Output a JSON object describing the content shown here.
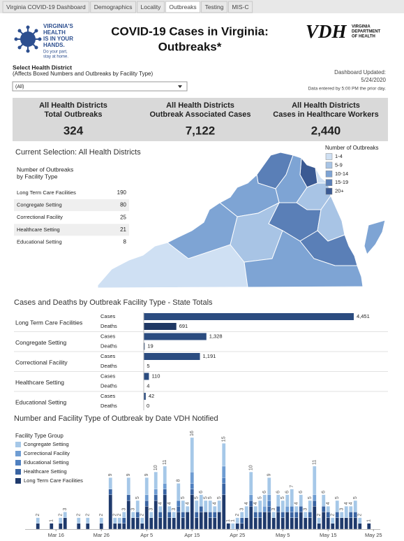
{
  "tabs": [
    "Virginia COVID-19 Dashboard",
    "Demographics",
    "Locality",
    "Outbreaks",
    "Testing",
    "MIS-C"
  ],
  "header": {
    "logo_lines": [
      "VIRGINIA'S",
      "HEALTH",
      "IS IN YOUR",
      "HANDS."
    ],
    "logo_tagline": [
      "Do your part,",
      "stay at home."
    ],
    "title_lines": [
      "COVID-19 Cases in Virginia:",
      "Outbreaks*"
    ],
    "vdh": "VDH",
    "vdh_lines": [
      "VIRGINIA",
      "DEPARTMENT",
      "OF HEALTH"
    ]
  },
  "selector": {
    "label": "Select Health District",
    "note": "(Affects Boxed Numbers and Outbreaks by Facility Type)",
    "value": "(All)"
  },
  "updated": {
    "label": "Dashboard Updated:",
    "date": "5/24/2020",
    "note": "Data entered by 5:00 PM the prior day."
  },
  "kpis": [
    {
      "label_lines": [
        "All Health Districts",
        "Total Outbreaks"
      ],
      "value": 324
    },
    {
      "label_lines": [
        "All Health Districts",
        "Outbreak Associated Cases"
      ],
      "value": 7122,
      "value_label": "7,122"
    },
    {
      "label_lines": [
        "All Health Districts",
        "Cases in Healthcare Workers"
      ],
      "value": 2440,
      "value_label": "2,440"
    }
  ],
  "selection": "Current Selection: All Health Districts",
  "outbreak_table": {
    "title_lines": [
      "Number of Outbreaks",
      "by Facility Type"
    ],
    "rows": [
      [
        "Long Term Care Facilities",
        190
      ],
      [
        "Congregate Setting",
        80
      ],
      [
        "Correctional Facility",
        25
      ],
      [
        "Healthcare Setting",
        21
      ],
      [
        "Educational Setting",
        8
      ]
    ]
  },
  "map": {
    "legend_title": "Number of Outbreaks",
    "bins": [
      {
        "label": "1-4",
        "color": "#cfe0f3"
      },
      {
        "label": "5-9",
        "color": "#a8c4e5"
      },
      {
        "label": "10-14",
        "color": "#7ea4d4"
      },
      {
        "label": "15-19",
        "color": "#5a7fb7"
      },
      {
        "label": "20+",
        "color": "#3b5a93"
      }
    ]
  },
  "chart_data": [
    {
      "type": "hbar",
      "title": "Cases and Deaths by Outbreak Facility Type - State Totals",
      "categories": [
        "Long Term Care Facilities",
        "Congregate Setting",
        "Correctional Facility",
        "Healthcare Setting",
        "Educational Setting"
      ],
      "series": [
        {
          "name": "Cases",
          "color": "#2b4c80",
          "values": [
            4451,
            1328,
            1191,
            110,
            42
          ],
          "value_labels": [
            "4,451",
            "1,328",
            "1,191",
            "110",
            "42"
          ]
        },
        {
          "name": "Deaths",
          "color": "#1f3864",
          "values": [
            691,
            19,
            5,
            4,
            0
          ]
        }
      ]
    },
    {
      "type": "stacked_bar",
      "title": "Number and Facility Type of Outbreak by Date VDH Notified",
      "legend_title": "Facility Type Group",
      "x": [
        "Mar 10",
        "Mar 11",
        "Mar 12",
        "Mar 13",
        "Mar 14",
        "Mar 15",
        "Mar 16",
        "Mar 17",
        "Mar 18",
        "Mar 19",
        "Mar 20",
        "Mar 21",
        "Mar 22",
        "Mar 23",
        "Mar 24",
        "Mar 25",
        "Mar 26",
        "Mar 27",
        "Mar 28",
        "Mar 29",
        "Mar 30",
        "Mar 31",
        "Apr 1",
        "Apr 2",
        "Apr 3",
        "Apr 4",
        "Apr 5",
        "Apr 6",
        "Apr 7",
        "Apr 8",
        "Apr 9",
        "Apr 10",
        "Apr 11",
        "Apr 12",
        "Apr 13",
        "Apr 14",
        "Apr 15",
        "Apr 16",
        "Apr 17",
        "Apr 18",
        "Apr 19",
        "Apr 20",
        "Apr 21",
        "Apr 22",
        "Apr 23",
        "Apr 24",
        "Apr 25",
        "Apr 26",
        "Apr 27",
        "Apr 28",
        "Apr 29",
        "Apr 30",
        "May 1",
        "May 2",
        "May 3",
        "May 4",
        "May 5",
        "May 6",
        "May 7",
        "May 8",
        "May 9",
        "May 10",
        "May 11",
        "May 12",
        "May 13",
        "May 14",
        "May 15",
        "May 16",
        "May 17",
        "May 18",
        "May 19",
        "May 20",
        "May 21",
        "May 22",
        "May 23",
        "May 24"
      ],
      "xticks": [
        "Mar 16",
        "Mar 26",
        "Apr 5",
        "Apr 15",
        "Apr 25",
        "May 5",
        "May 15",
        "May 25"
      ],
      "series": [
        {
          "name": "Congregate Setting",
          "color": "#a6c8e8",
          "values": [
            0,
            0,
            1,
            0,
            0,
            0,
            0,
            1,
            1,
            0,
            0,
            1,
            0,
            1,
            0,
            0,
            1,
            0,
            2,
            1,
            1,
            1,
            3,
            1,
            2,
            1,
            3,
            1,
            3,
            1,
            3,
            1,
            1,
            3,
            2,
            1,
            6,
            2,
            2,
            2,
            2,
            1,
            2,
            4,
            0,
            1,
            1,
            1,
            2,
            4,
            1,
            2,
            2,
            3,
            1,
            2,
            2,
            2,
            3,
            1,
            2,
            1,
            2,
            5,
            1,
            2,
            1,
            1,
            2,
            1,
            2,
            1,
            2,
            1,
            0,
            0
          ]
        },
        {
          "name": "Correctional Facility",
          "color": "#6f9dd3",
          "values": [
            0,
            0,
            0,
            0,
            0,
            0,
            0,
            0,
            0,
            0,
            0,
            0,
            0,
            0,
            0,
            0,
            0,
            0,
            0,
            0,
            0,
            0,
            0,
            0,
            0,
            0,
            1,
            0,
            1,
            0,
            1,
            0,
            0,
            0,
            0,
            0,
            2,
            0,
            0,
            0,
            0,
            0,
            0,
            2,
            0,
            0,
            0,
            0,
            0,
            1,
            0,
            0,
            1,
            1,
            0,
            0,
            0,
            1,
            0,
            0,
            0,
            0,
            0,
            1,
            0,
            0,
            0,
            0,
            0,
            0,
            0,
            0,
            0,
            0,
            0,
            0
          ]
        },
        {
          "name": "Educational Setting",
          "color": "#4f80c0",
          "values": [
            0,
            0,
            0,
            0,
            0,
            0,
            0,
            0,
            0,
            0,
            0,
            0,
            0,
            0,
            0,
            0,
            0,
            0,
            0,
            0,
            0,
            0,
            0,
            0,
            0,
            0,
            0,
            0,
            0,
            0,
            0,
            0,
            0,
            1,
            0,
            0,
            1,
            0,
            0,
            0,
            0,
            0,
            0,
            1,
            0,
            0,
            0,
            0,
            0,
            0,
            0,
            0,
            0,
            1,
            0,
            0,
            0,
            0,
            1,
            0,
            0,
            0,
            0,
            0,
            0,
            0,
            0,
            0,
            0,
            0,
            0,
            0,
            0,
            0,
            0,
            0
          ]
        },
        {
          "name": "Healthcare Setting",
          "color": "#3a64a2",
          "values": [
            0,
            0,
            0,
            0,
            0,
            0,
            0,
            0,
            0,
            0,
            0,
            0,
            0,
            0,
            0,
            0,
            0,
            0,
            1,
            0,
            0,
            1,
            1,
            0,
            1,
            0,
            1,
            0,
            1,
            1,
            1,
            1,
            0,
            1,
            1,
            0,
            1,
            1,
            1,
            0,
            1,
            1,
            0,
            2,
            0,
            0,
            0,
            1,
            0,
            1,
            1,
            1,
            0,
            1,
            0,
            1,
            1,
            0,
            1,
            1,
            1,
            0,
            1,
            1,
            0,
            1,
            1,
            0,
            1,
            0,
            0,
            1,
            1,
            0,
            0,
            0
          ]
        },
        {
          "name": "Long Term Care Facilities",
          "color": "#1f3a6c",
          "values": [
            0,
            0,
            1,
            0,
            0,
            1,
            0,
            1,
            2,
            0,
            0,
            1,
            0,
            1,
            0,
            0,
            1,
            0,
            6,
            1,
            1,
            1,
            5,
            2,
            2,
            1,
            4,
            2,
            5,
            2,
            6,
            2,
            2,
            3,
            2,
            3,
            6,
            2,
            3,
            3,
            2,
            2,
            3,
            6,
            1,
            0,
            1,
            1,
            2,
            4,
            2,
            2,
            3,
            3,
            2,
            3,
            2,
            3,
            2,
            2,
            3,
            2,
            2,
            4,
            1,
            3,
            2,
            1,
            2,
            2,
            2,
            2,
            2,
            1,
            0,
            1
          ]
        }
      ],
      "totals": [
        null,
        null,
        2,
        null,
        null,
        1,
        null,
        2,
        3,
        null,
        null,
        2,
        null,
        2,
        null,
        null,
        2,
        null,
        9,
        2,
        2,
        3,
        9,
        3,
        5,
        2,
        9,
        3,
        10,
        4,
        11,
        4,
        3,
        8,
        5,
        4,
        16,
        5,
        6,
        5,
        5,
        4,
        5,
        15,
        1,
        1,
        2,
        3,
        4,
        10,
        4,
        5,
        6,
        9,
        3,
        6,
        5,
        6,
        7,
        4,
        6,
        3,
        5,
        11,
        2,
        6,
        4,
        2,
        5,
        3,
        4,
        4,
        5,
        2,
        null,
        1
      ]
    }
  ]
}
